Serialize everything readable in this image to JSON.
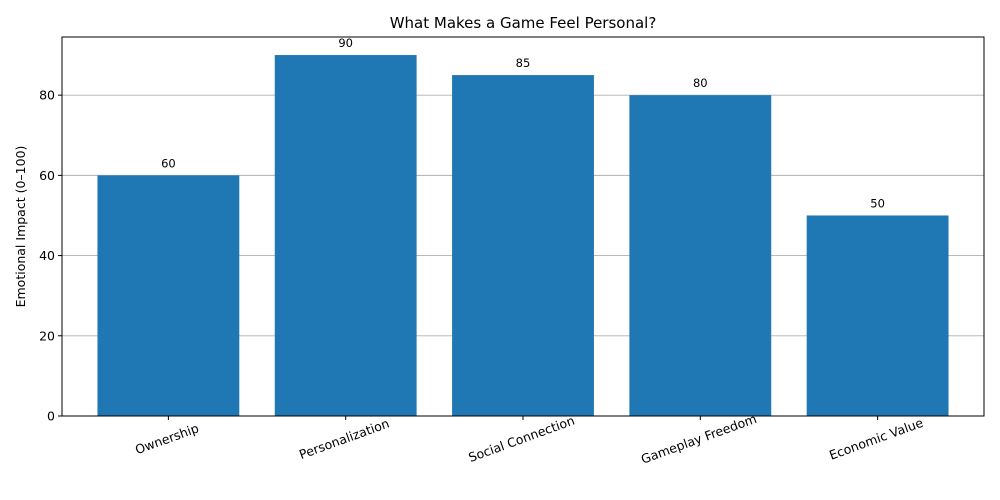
{
  "chart_data": {
    "type": "bar",
    "title": "What Makes a Game Feel Personal?",
    "xlabel": "",
    "ylabel": "Emotional Impact (0–100)",
    "categories": [
      "Ownership",
      "Personalization",
      "Social Connection",
      "Gameplay Freedom",
      "Economic Value"
    ],
    "values": [
      60,
      90,
      85,
      80,
      50
    ],
    "ylim": [
      0,
      94.5
    ],
    "yticks": [
      0,
      20,
      40,
      60,
      80
    ],
    "grid": "y",
    "bar_color": "#1f77b4",
    "x_tick_rotation_deg": 20
  }
}
